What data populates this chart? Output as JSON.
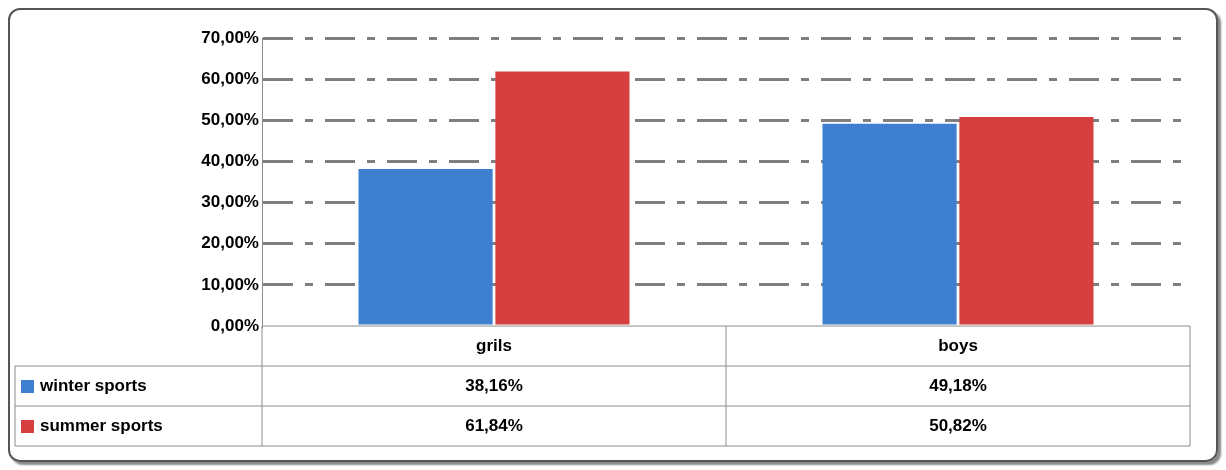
{
  "chart_data": {
    "type": "bar",
    "categories": [
      "grils",
      "boys"
    ],
    "series": [
      {
        "name": "winter sports",
        "color": "#3f7fd0",
        "values": [
          38.16,
          49.18
        ],
        "value_labels": [
          "38,16%",
          "49,18%"
        ]
      },
      {
        "name": "summer sports",
        "color": "#d63f3f",
        "values": [
          61.84,
          50.82
        ],
        "value_labels": [
          "61,84%",
          "50,82%"
        ]
      }
    ],
    "ylim": [
      0,
      70
    ],
    "yticks": [
      {
        "value": 0,
        "label": "0,00%"
      },
      {
        "value": 10,
        "label": "10,00%"
      },
      {
        "value": 20,
        "label": "20,00%"
      },
      {
        "value": 30,
        "label": "30,00%"
      },
      {
        "value": 40,
        "label": "40,00%"
      },
      {
        "value": 50,
        "label": "50,00%"
      },
      {
        "value": 60,
        "label": "60,00%"
      },
      {
        "value": 70,
        "label": "70,00%"
      }
    ],
    "grid": "y",
    "legend": "bottom"
  }
}
